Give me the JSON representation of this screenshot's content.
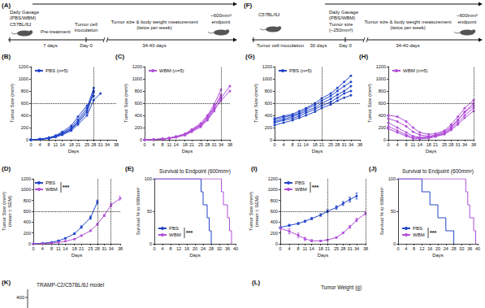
{
  "schematics": [
    {
      "panel": "(A)",
      "gavage": [
        "Daily Gavage",
        "(PBS/WBM)"
      ],
      "strain": "C57BL/6J",
      "pretreatment": "Pre-treatment",
      "pre_duration": "7 days",
      "inoculation": [
        "Tumor cell",
        "inoculation"
      ],
      "day0": "Day 0",
      "measurement": [
        "Tumor size & body weight measurement",
        "(twice per week)"
      ],
      "duration": "34-40 days",
      "endpoint_size": "~600mm³",
      "endpoint": "endpoint"
    },
    {
      "panel": "(F)",
      "strain": "C57BL/6J",
      "inoculation": [
        "Tumor cell inoculation"
      ],
      "growth_duration": "30 days",
      "gavage": [
        "Daily Gavage",
        "(PBS/WBM)"
      ],
      "start_size": [
        "Tumor size",
        "(~250mm³)"
      ],
      "day0": "Day 0",
      "measurement": [
        "Tumor size & body weight measurement",
        "(twice per week)"
      ],
      "duration": "34-40 days",
      "endpoint_size": "~600mm³",
      "endpoint": "endpoint"
    }
  ],
  "fragments": [
    {
      "panel": "(K)",
      "title": "TRAMP-C2/C57BL/6J model",
      "ytick": 400
    },
    {
      "panel": "(L)",
      "title": "Tumor Weight (g)"
    }
  ],
  "chart_data": [
    {
      "panel": "(B)",
      "type": "line",
      "marker": "circle",
      "grid": false,
      "legend": "upper left",
      "xlabel": "Days",
      "ylabel": [
        "Tumor Size (mm³)"
      ],
      "x": [
        0,
        4,
        8,
        11,
        14,
        18,
        21,
        25,
        28,
        31,
        34,
        38
      ],
      "xlim": [
        0,
        38
      ],
      "xticks": [
        0,
        4,
        8,
        11,
        14,
        18,
        21,
        25,
        28,
        31,
        34,
        38
      ],
      "ylim": [
        0,
        1200
      ],
      "yticks": [
        0,
        200,
        400,
        600,
        800,
        1000,
        1200
      ],
      "hline": 600,
      "vlines": [
        28
      ],
      "series": [
        {
          "name": "PBS (n=5)",
          "color": "#2346c8",
          "values": [
            0,
            10,
            30,
            60,
            110,
            200,
            330,
            520,
            850,
            null,
            null,
            null
          ]
        },
        {
          "name": "PBS (n=5)",
          "color": "#2346c8",
          "values": [
            0,
            10,
            25,
            55,
            100,
            180,
            300,
            480,
            800,
            null,
            null,
            null
          ]
        },
        {
          "name": "PBS (n=5)",
          "color": "#2346c8",
          "values": [
            0,
            8,
            25,
            50,
            90,
            170,
            280,
            450,
            780,
            null,
            null,
            null
          ]
        },
        {
          "name": "PBS (n=5)",
          "color": "#2346c8",
          "values": [
            0,
            12,
            35,
            70,
            130,
            230,
            380,
            560,
            720,
            null,
            null,
            null
          ]
        },
        {
          "name": "PBS (n=5)",
          "color": "#2346c8",
          "values": [
            0,
            8,
            20,
            45,
            80,
            150,
            250,
            400,
            650,
            760,
            null,
            null
          ]
        }
      ]
    },
    {
      "panel": "(C)",
      "type": "line",
      "marker": "circle",
      "grid": false,
      "legend": "upper left",
      "xlabel": "Days",
      "ylabel": [
        "Tumor Size (mm³)"
      ],
      "x": [
        0,
        4,
        8,
        11,
        14,
        18,
        21,
        25,
        28,
        31,
        34,
        38
      ],
      "xlim": [
        0,
        38
      ],
      "xticks": [
        0,
        4,
        8,
        11,
        14,
        18,
        21,
        25,
        28,
        31,
        34,
        38
      ],
      "ylim": [
        0,
        1200
      ],
      "yticks": [
        0,
        200,
        400,
        600,
        800,
        1000,
        1200
      ],
      "hline": 600,
      "vlines": [
        34
      ],
      "series": [
        {
          "name": "WBM (n=5)",
          "color": "#b04fd8",
          "values": [
            0,
            5,
            15,
            30,
            55,
            100,
            170,
            270,
            400,
            580,
            820,
            null
          ]
        },
        {
          "name": "WBM (n=5)",
          "color": "#b04fd8",
          "values": [
            0,
            5,
            12,
            25,
            45,
            85,
            150,
            240,
            360,
            520,
            740,
            null
          ]
        },
        {
          "name": "WBM (n=5)",
          "color": "#b04fd8",
          "values": [
            0,
            4,
            10,
            22,
            40,
            75,
            130,
            210,
            320,
            470,
            680,
            880
          ]
        },
        {
          "name": "WBM (n=5)",
          "color": "#b04fd8",
          "values": [
            0,
            6,
            15,
            28,
            50,
            90,
            160,
            250,
            380,
            540,
            700,
            null
          ]
        },
        {
          "name": "WBM (n=5)",
          "color": "#b04fd8",
          "values": [
            0,
            5,
            12,
            25,
            48,
            80,
            140,
            230,
            340,
            500,
            640,
            800
          ]
        }
      ]
    },
    {
      "panel": "(D)",
      "type": "line",
      "marker": "circle",
      "grid": false,
      "legend": "upper left",
      "xlabel": "Days",
      "ylabel": [
        "Tumor Size (mm³)",
        "(mean ± SEM)"
      ],
      "annotations": [
        "***"
      ],
      "x": [
        0,
        4,
        8,
        11,
        14,
        18,
        21,
        25,
        28,
        31,
        34,
        38
      ],
      "xlim": [
        0,
        38
      ],
      "xticks": [
        0,
        4,
        8,
        11,
        14,
        18,
        21,
        25,
        28,
        31,
        34,
        38
      ],
      "ylim": [
        0,
        1200
      ],
      "yticks": [
        0,
        200,
        400,
        600,
        800,
        1000,
        1200
      ],
      "hline": 600,
      "vlines": [
        28,
        34
      ],
      "series": [
        {
          "name": "PBS",
          "color": "#2346c8",
          "values": [
            0,
            10,
            27,
            56,
            102,
            186,
            308,
            482,
            770,
            null,
            null,
            null
          ],
          "errors": [
            0,
            1,
            3,
            4,
            9,
            14,
            23,
            29,
            35,
            null,
            null,
            null
          ]
        },
        {
          "name": "WBM",
          "color": "#b04fd8",
          "values": [
            0,
            5,
            13,
            26,
            48,
            86,
            150,
            240,
            360,
            522,
            716,
            840
          ],
          "errors": [
            0,
            0.5,
            1,
            1.5,
            3,
            5,
            7,
            10,
            14,
            18,
            32,
            40
          ]
        }
      ]
    },
    {
      "panel": "(E)",
      "type": "step",
      "marker": "none",
      "grid": false,
      "legend": "lower left",
      "title": "Survival to Endpoint (600mm³)",
      "annotations": [
        "***"
      ],
      "xlabel": "Days",
      "ylabel": [
        "Survival % to 600mm³"
      ],
      "xlim": [
        0,
        40
      ],
      "xticks": [
        0,
        4,
        8,
        12,
        16,
        20,
        24,
        28,
        32,
        36,
        40
      ],
      "ylim": [
        0,
        100
      ],
      "yticks": [
        0,
        50,
        100
      ],
      "series": [
        {
          "name": "PBS",
          "color": "#2346c8",
          "x": [
            0,
            23,
            24,
            26,
            27,
            28
          ],
          "values": [
            100,
            80,
            60,
            40,
            20,
            0
          ]
        },
        {
          "name": "WBM",
          "color": "#b04fd8",
          "x": [
            0,
            33,
            34,
            36,
            37,
            38
          ],
          "values": [
            100,
            80,
            60,
            40,
            20,
            0
          ]
        }
      ]
    },
    {
      "panel": "(G)",
      "type": "line",
      "marker": "circle",
      "grid": false,
      "legend": "upper left",
      "xlabel": "Days",
      "ylabel": [
        "Tumor Size (mm³)"
      ],
      "x": [
        0,
        4,
        8,
        11,
        14,
        18,
        21,
        25,
        28,
        31,
        34,
        38
      ],
      "xlim": [
        0,
        38
      ],
      "xticks": [
        0,
        4,
        8,
        11,
        14,
        18,
        21,
        25,
        28,
        31,
        34,
        38
      ],
      "ylim": [
        0,
        1200
      ],
      "yticks": [
        0,
        200,
        400,
        600,
        800,
        1000,
        1200
      ],
      "hline": 600,
      "vlines": [
        21
      ],
      "series": [
        {
          "name": "PBS (n=5)",
          "color": "#2346c8",
          "values": [
            350,
            390,
            420,
            470,
            520,
            600,
            680,
            760,
            850,
            950,
            1050,
            null
          ]
        },
        {
          "name": "PBS (n=5)",
          "color": "#2346c8",
          "values": [
            330,
            370,
            400,
            440,
            500,
            570,
            640,
            720,
            800,
            880,
            950,
            null
          ]
        },
        {
          "name": "PBS (n=5)",
          "color": "#2346c8",
          "values": [
            300,
            340,
            380,
            420,
            470,
            530,
            600,
            670,
            740,
            800,
            880,
            null
          ]
        },
        {
          "name": "PBS (n=5)",
          "color": "#2346c8",
          "values": [
            280,
            320,
            350,
            390,
            440,
            500,
            560,
            620,
            690,
            760,
            800,
            null
          ]
        },
        {
          "name": "PBS (n=5)",
          "color": "#2346c8",
          "values": [
            240,
            280,
            320,
            360,
            400,
            460,
            520,
            580,
            640,
            690,
            730,
            null
          ]
        }
      ]
    },
    {
      "panel": "(H)",
      "type": "line",
      "marker": "circle",
      "grid": false,
      "legend": "upper left",
      "xlabel": "Days",
      "ylabel": [
        "Tumor Size (mm³)"
      ],
      "x": [
        0,
        4,
        8,
        11,
        14,
        18,
        21,
        25,
        28,
        31,
        34,
        38
      ],
      "xlim": [
        0,
        38
      ],
      "xticks": [
        0,
        4,
        8,
        11,
        14,
        18,
        21,
        25,
        28,
        31,
        34,
        38
      ],
      "ylim": [
        0,
        1200
      ],
      "yticks": [
        0,
        200,
        400,
        600,
        800,
        1000,
        1200
      ],
      "hline": 600,
      "vlines": [
        38
      ],
      "series": [
        {
          "name": "WBM (n=5)",
          "color": "#b04fd8",
          "values": [
            400,
            380,
            300,
            200,
            120,
            90,
            100,
            150,
            250,
            380,
            520,
            650
          ]
        },
        {
          "name": "WBM (n=5)",
          "color": "#b04fd8",
          "values": [
            350,
            300,
            220,
            130,
            80,
            60,
            70,
            110,
            200,
            320,
            460,
            600
          ]
        },
        {
          "name": "WBM (n=5)",
          "color": "#b04fd8",
          "values": [
            280,
            200,
            120,
            60,
            40,
            50,
            80,
            130,
            220,
            330,
            450,
            560
          ]
        },
        {
          "name": "WBM (n=5)",
          "color": "#b04fd8",
          "values": [
            220,
            150,
            80,
            40,
            30,
            40,
            60,
            100,
            180,
            280,
            400,
            520
          ]
        },
        {
          "name": "WBM (n=5)",
          "color": "#b04fd8",
          "values": [
            180,
            120,
            60,
            20,
            15,
            25,
            50,
            90,
            160,
            250,
            360,
            470
          ]
        }
      ]
    },
    {
      "panel": "(I)",
      "type": "line",
      "marker": "circle",
      "grid": false,
      "legend": "upper left",
      "xlabel": "Days",
      "ylabel": [
        "Tumor Size (mm³)",
        "(mean ± SEM)"
      ],
      "annotations": [
        "***"
      ],
      "x": [
        0,
        4,
        8,
        11,
        14,
        18,
        21,
        25,
        28,
        31,
        34,
        38
      ],
      "xlim": [
        0,
        38
      ],
      "xticks": [
        0,
        4,
        8,
        11,
        14,
        18,
        21,
        25,
        28,
        31,
        34,
        38
      ],
      "ylim": [
        0,
        1200
      ],
      "yticks": [
        0,
        200,
        400,
        600,
        800,
        1000,
        1200
      ],
      "hline": 600,
      "vlines": [
        21,
        38
      ],
      "series": [
        {
          "name": "PBS",
          "color": "#2346c8",
          "values": [
            300,
            340,
            374,
            416,
            466,
            532,
            600,
            670,
            744,
            816,
            882,
            null
          ],
          "errors": [
            18,
            19,
            18,
            19,
            21,
            24,
            28,
            32,
            36,
            45,
            55,
            null
          ]
        },
        {
          "name": "WBM",
          "color": "#b04fd8",
          "values": [
            286,
            230,
            156,
            90,
            57,
            53,
            72,
            116,
            202,
            312,
            438,
            560
          ],
          "errors": [
            40,
            45,
            42,
            30,
            20,
            12,
            10,
            11,
            15,
            24,
            30,
            32
          ]
        }
      ]
    },
    {
      "panel": "(J)",
      "type": "step",
      "marker": "none",
      "grid": false,
      "legend": "lower left",
      "title": "Survival to Endpoint (600mm³)",
      "annotations": [
        "***"
      ],
      "xlabel": "Days",
      "ylabel": [
        "Survival % to 600mm³"
      ],
      "xlim": [
        0,
        40
      ],
      "xticks": [
        0,
        4,
        8,
        12,
        16,
        20,
        24,
        28,
        32,
        36,
        40
      ],
      "ylim": [
        0,
        100
      ],
      "yticks": [
        0,
        50,
        100
      ],
      "series": [
        {
          "name": "PBS",
          "color": "#2346c8",
          "x": [
            0,
            12,
            16,
            20,
            24,
            28
          ],
          "values": [
            100,
            80,
            60,
            40,
            20,
            0
          ]
        },
        {
          "name": "WBM",
          "color": "#b04fd8",
          "x": [
            0,
            34,
            35,
            36,
            38,
            39
          ],
          "values": [
            100,
            80,
            60,
            40,
            20,
            0
          ]
        }
      ]
    }
  ]
}
